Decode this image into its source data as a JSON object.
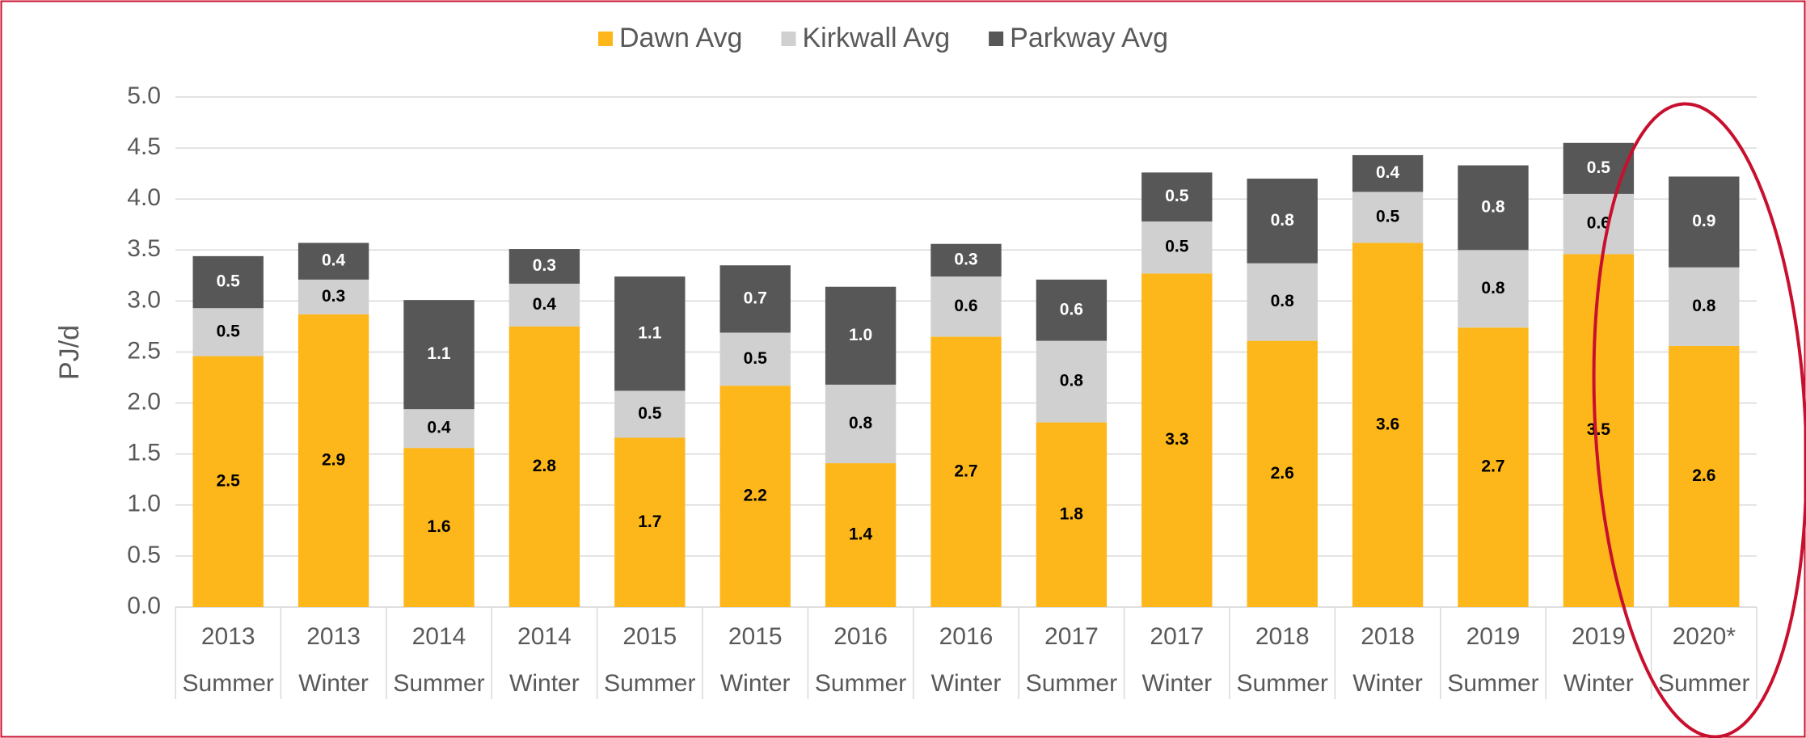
{
  "chart_data": {
    "type": "bar",
    "stacked": true,
    "y_label": "PJ/d",
    "categories": [
      [
        "2013",
        "Summer"
      ],
      [
        "2013",
        "Winter"
      ],
      [
        "2014",
        "Summer"
      ],
      [
        "2014",
        "Winter"
      ],
      [
        "2015",
        "Summer"
      ],
      [
        "2015",
        "Winter"
      ],
      [
        "2016",
        "Summer"
      ],
      [
        "2016",
        "Winter"
      ],
      [
        "2017",
        "Summer"
      ],
      [
        "2017",
        "Winter"
      ],
      [
        "2018",
        "Summer"
      ],
      [
        "2018",
        "Winter"
      ],
      [
        "2019",
        "Summer"
      ],
      [
        "2019",
        "Winter"
      ],
      [
        "2020*",
        "Summer"
      ]
    ],
    "series": [
      {
        "name": "Dawn Avg",
        "color": "#fdb71a",
        "values": [
          2.46,
          2.87,
          1.56,
          2.75,
          1.66,
          2.17,
          1.41,
          2.65,
          1.81,
          3.27,
          2.61,
          3.57,
          2.74,
          3.46,
          2.56
        ],
        "value_labels": [
          "2.5",
          "2.9",
          "1.6",
          "2.8",
          "1.7",
          "2.2",
          "1.4",
          "2.7",
          "1.8",
          "3.3",
          "2.6",
          "3.6",
          "2.7",
          "3.5",
          "2.6"
        ]
      },
      {
        "name": "Kirkwall Avg",
        "color": "#d0d0d0",
        "values": [
          0.47,
          0.34,
          0.38,
          0.42,
          0.46,
          0.52,
          0.77,
          0.59,
          0.8,
          0.51,
          0.76,
          0.5,
          0.76,
          0.59,
          0.77
        ],
        "value_labels": [
          "0.5",
          "0.3",
          "0.4",
          "0.4",
          "0.5",
          "0.5",
          "0.8",
          "0.6",
          "0.8",
          "0.5",
          "0.8",
          "0.5",
          "0.8",
          "0.6",
          "0.8"
        ]
      },
      {
        "name": "Parkway Avg",
        "color": "#575757",
        "values": [
          0.51,
          0.36,
          1.07,
          0.34,
          1.12,
          0.66,
          0.96,
          0.32,
          0.6,
          0.48,
          0.83,
          0.36,
          0.83,
          0.5,
          0.89
        ],
        "value_labels": [
          "0.5",
          "0.4",
          "1.1",
          "0.3",
          "1.1",
          "0.7",
          "1.0",
          "0.3",
          "0.6",
          "0.5",
          "0.8",
          "0.4",
          "0.8",
          "0.5",
          "0.9"
        ]
      }
    ],
    "ylim": [
      0,
      5
    ],
    "yticks": [
      {
        "value": 0,
        "label": "0.0"
      },
      {
        "value": 0.5,
        "label": "0.5"
      },
      {
        "value": 1,
        "label": "1.0"
      },
      {
        "value": 1.5,
        "label": "1.5"
      },
      {
        "value": 2,
        "label": "2.0"
      },
      {
        "value": 2.5,
        "label": "2.5"
      },
      {
        "value": 3,
        "label": "3.0"
      },
      {
        "value": 3.5,
        "label": "3.5"
      },
      {
        "value": 4,
        "label": "4.0"
      },
      {
        "value": 4.5,
        "label": "4.5"
      },
      {
        "value": 5,
        "label": "5.0"
      }
    ],
    "grid": true,
    "legend": "top"
  }
}
